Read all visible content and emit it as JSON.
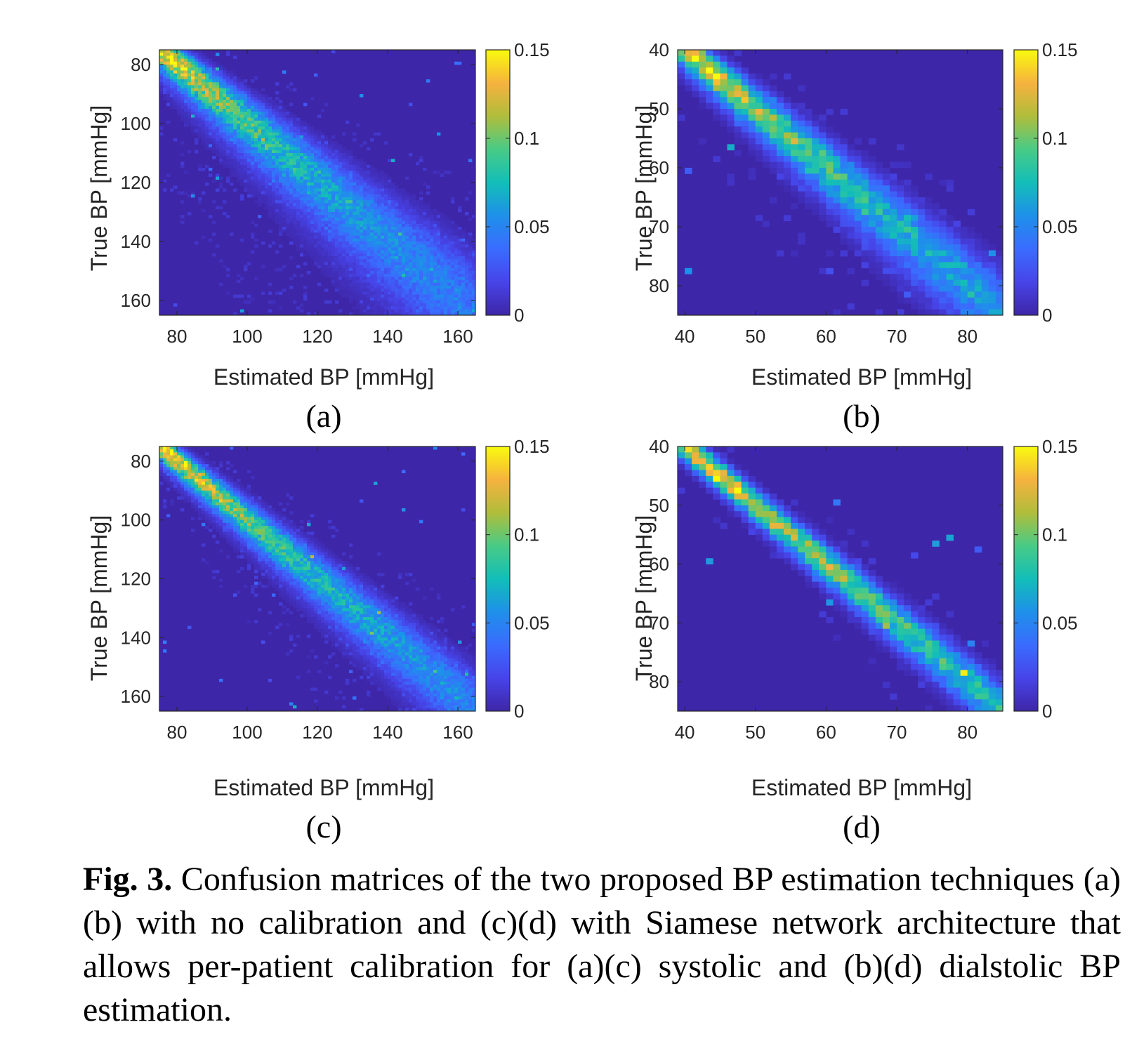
{
  "figure": {
    "caption": {
      "label": "Fig. 3.",
      "text": "Confusion matrices of the two proposed BP estimation techniques (a)(b) with no calibration and (c)(d) with Siamese network architecture that allows per-patient calibration for (a)(c) systolic and (b)(d) dialstolic BP estimation."
    }
  },
  "colors": {
    "colormap": "parula",
    "low": "#3e26a8",
    "mid": "#13beb8",
    "high": "#f9fb0e"
  },
  "chart_data": [
    {
      "id": "a",
      "type": "heatmap",
      "panel_label": "(a)",
      "xlabel": "Estimated BP [mmHg]",
      "ylabel": "True BP [mmHg]",
      "xlim": [
        75,
        165
      ],
      "ylim": [
        75,
        165
      ],
      "y_reversed": true,
      "xticks": [
        80,
        100,
        120,
        140,
        160
      ],
      "yticks": [
        80,
        100,
        120,
        140,
        160
      ],
      "bin_size": 1,
      "colorbar": {
        "limits": [
          0,
          0.15
        ],
        "ticks": [
          0,
          0.05,
          0.1,
          0.15
        ],
        "tick_labels": [
          "0",
          "0.05",
          "0.1",
          "0.15"
        ]
      },
      "approx_distribution": {
        "band_center": "diagonal",
        "peak_value": 0.15,
        "spread_near_80": 4,
        "spread_near_160": 14
      }
    },
    {
      "id": "b",
      "type": "heatmap",
      "panel_label": "(b)",
      "xlabel": "Estimated BP [mmHg]",
      "ylabel": "True BP [mmHg]",
      "xlim": [
        39,
        85
      ],
      "ylim": [
        40,
        85
      ],
      "y_reversed": true,
      "xticks": [
        40,
        50,
        60,
        70,
        80
      ],
      "yticks": [
        40,
        50,
        60,
        70,
        80
      ],
      "bin_size": 1,
      "colorbar": {
        "limits": [
          0,
          0.15
        ],
        "ticks": [
          0,
          0.05,
          0.1,
          0.15
        ],
        "tick_labels": [
          "0",
          "0.05",
          "0.1",
          "0.15"
        ]
      },
      "approx_distribution": {
        "band_center": "diagonal",
        "peak_value": 0.14,
        "spread_near_40": 2,
        "spread_near_80": 5
      }
    },
    {
      "id": "c",
      "type": "heatmap",
      "panel_label": "(c)",
      "xlabel": "Estimated BP [mmHg]",
      "ylabel": "True BP [mmHg]",
      "xlim": [
        75,
        165
      ],
      "ylim": [
        75,
        165
      ],
      "y_reversed": true,
      "xticks": [
        80,
        100,
        120,
        140,
        160
      ],
      "yticks": [
        80,
        100,
        120,
        140,
        160
      ],
      "bin_size": 1,
      "colorbar": {
        "limits": [
          0,
          0.15
        ],
        "ticks": [
          0,
          0.05,
          0.1,
          0.15
        ],
        "tick_labels": [
          "0",
          "0.05",
          "0.1",
          "0.15"
        ]
      },
      "approx_distribution": {
        "band_center": "diagonal",
        "peak_value": 0.15,
        "spread_near_80": 3,
        "spread_near_160": 9
      }
    },
    {
      "id": "d",
      "type": "heatmap",
      "panel_label": "(d)",
      "xlabel": "Estimated BP [mmHg]",
      "ylabel": "True BP [mmHg]",
      "xlim": [
        39,
        85
      ],
      "ylim": [
        40,
        85
      ],
      "y_reversed": true,
      "xticks": [
        40,
        50,
        60,
        70,
        80
      ],
      "yticks": [
        40,
        50,
        60,
        70,
        80
      ],
      "bin_size": 1,
      "colorbar": {
        "limits": [
          0,
          0.15
        ],
        "ticks": [
          0,
          0.05,
          0.1,
          0.15
        ],
        "tick_labels": [
          "0",
          "0.05",
          "0.1",
          "0.15"
        ]
      },
      "approx_distribution": {
        "band_center": "diagonal",
        "peak_value": 0.15,
        "spread_near_40": 1.5,
        "spread_near_80": 3
      }
    }
  ]
}
